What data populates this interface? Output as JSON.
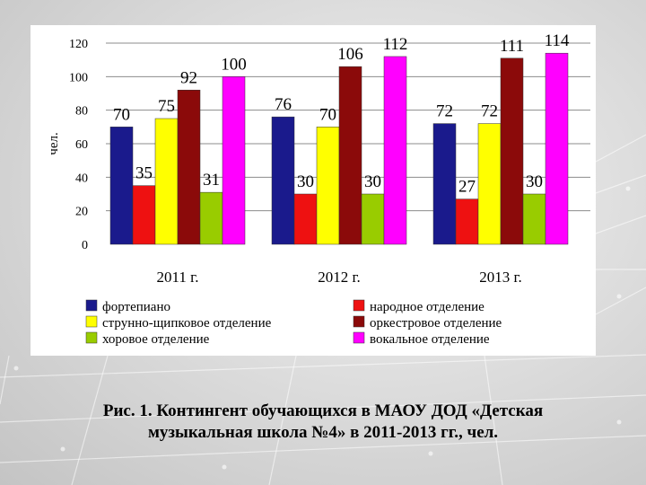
{
  "caption": {
    "line1": "Рис. 1. Контингент обучающихся в МАОУ ДОД «Детская",
    "line2": "музыкальная школа №4» в 2011-2013 гг., чел."
  },
  "chart_data": {
    "type": "bar",
    "title": "",
    "xlabel": "",
    "ylabel": "чел.",
    "ylim": [
      0,
      120
    ],
    "yticks": [
      0,
      20,
      40,
      60,
      80,
      100,
      120
    ],
    "grid": true,
    "legend_position": "bottom",
    "categories": [
      "2011 г.",
      "2012 г.",
      "2013 г."
    ],
    "series": [
      {
        "name": "фортепиано",
        "color": "#1a1a8c",
        "values": [
          70,
          76,
          72
        ]
      },
      {
        "name": "народное отделение",
        "color": "#ee1111",
        "values": [
          35,
          30,
          27
        ]
      },
      {
        "name": "струнно-щипковое отделение",
        "color": "#ffff00",
        "values": [
          75,
          70,
          72
        ]
      },
      {
        "name": "оркестровое отделение",
        "color": "#8b0a0a",
        "values": [
          92,
          106,
          111
        ]
      },
      {
        "name": "хоровое отделение",
        "color": "#99cc00",
        "values": [
          31,
          30,
          30
        ]
      },
      {
        "name": "вокальное отделение",
        "color": "#ff00ff",
        "values": [
          100,
          112,
          114
        ]
      }
    ]
  }
}
